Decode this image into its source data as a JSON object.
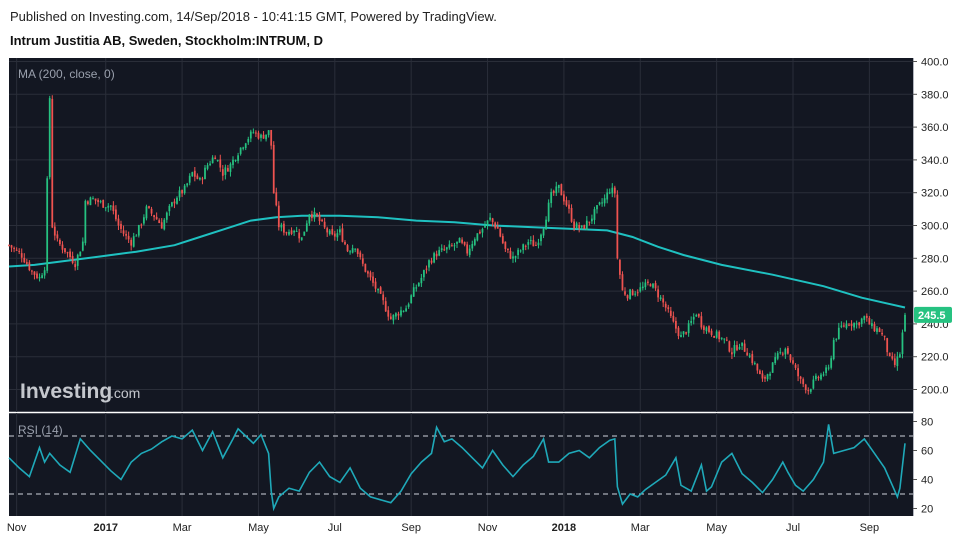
{
  "header": {
    "published": "Published on Investing.com, 14/Sep/2018 - 10:41:15 GMT, Powered by TradingView.",
    "instrument": "Intrum Justitia AB, Sweden, Stockholm:INTRUM, D"
  },
  "watermark": {
    "brand": "Investing",
    "suffix": ".com"
  },
  "colors": {
    "background": "#131722",
    "up": "#26c281",
    "down": "#ef5350",
    "ma": "#1fc1c1",
    "rsi": "#1fa9b9",
    "last_badge": "#26c281"
  },
  "chart_data": [
    {
      "type": "candlestick",
      "indicator_label": "MA (200, close, 0)",
      "ylim": [
        190,
        400
      ],
      "y_ticks": [
        "400.0",
        "380.0",
        "360.0",
        "340.0",
        "320.0",
        "300.0",
        "280.0",
        "260.0",
        "240.0",
        "220.0",
        "200.0"
      ],
      "last_price": "245.5",
      "x_ticks": [
        "Nov",
        "2017",
        "Mar",
        "May",
        "Jul",
        "Sep",
        "Nov",
        "2018",
        "Mar",
        "May",
        "Jul",
        "Sep"
      ],
      "close_path": [
        [
          0,
          288
        ],
        [
          5,
          282
        ],
        [
          9,
          272
        ],
        [
          12,
          268
        ],
        [
          14,
          275
        ],
        [
          16,
          378
        ],
        [
          17,
          300
        ],
        [
          19,
          290
        ],
        [
          22,
          285
        ],
        [
          26,
          277
        ],
        [
          29,
          290
        ],
        [
          30,
          315
        ],
        [
          33,
          316
        ],
        [
          37,
          313
        ],
        [
          40,
          312
        ],
        [
          43,
          300
        ],
        [
          46,
          293
        ],
        [
          48,
          290
        ],
        [
          51,
          298
        ],
        [
          54,
          310
        ],
        [
          57,
          306
        ],
        [
          60,
          300
        ],
        [
          63,
          310
        ],
        [
          66,
          318
        ],
        [
          69,
          322
        ],
        [
          72,
          332
        ],
        [
          75,
          327
        ],
        [
          78,
          337
        ],
        [
          81,
          343
        ],
        [
          84,
          332
        ],
        [
          87,
          337
        ],
        [
          90,
          345
        ],
        [
          93,
          352
        ],
        [
          96,
          357
        ],
        [
          99,
          354
        ],
        [
          102,
          357
        ],
        [
          103,
          349
        ],
        [
          104,
          320
        ],
        [
          106,
          300
        ],
        [
          109,
          296
        ],
        [
          112,
          298
        ],
        [
          115,
          292
        ],
        [
          118,
          308
        ],
        [
          121,
          305
        ],
        [
          124,
          298
        ],
        [
          127,
          293
        ],
        [
          130,
          296
        ],
        [
          133,
          285
        ],
        [
          136,
          288
        ],
        [
          138,
          279
        ],
        [
          141,
          270
        ],
        [
          144,
          262
        ],
        [
          147,
          253
        ],
        [
          150,
          243
        ],
        [
          153,
          247
        ],
        [
          156,
          250
        ],
        [
          159,
          260
        ],
        [
          162,
          268
        ],
        [
          165,
          278
        ],
        [
          168,
          283
        ],
        [
          171,
          285
        ],
        [
          174,
          287
        ],
        [
          177,
          290
        ],
        [
          180,
          284
        ],
        [
          183,
          293
        ],
        [
          186,
          298
        ],
        [
          189,
          304
        ],
        [
          192,
          298
        ],
        [
          195,
          285
        ],
        [
          198,
          280
        ],
        [
          201,
          285
        ],
        [
          204,
          290
        ],
        [
          207,
          288
        ],
        [
          210,
          300
        ],
        [
          213,
          318
        ],
        [
          216,
          323
        ],
        [
          219,
          313
        ],
        [
          222,
          300
        ],
        [
          225,
          298
        ],
        [
          228,
          303
        ],
        [
          231,
          310
        ],
        [
          234,
          316
        ],
        [
          236,
          322
        ],
        [
          238,
          320
        ],
        [
          239,
          280
        ],
        [
          241,
          260
        ],
        [
          243,
          258
        ],
        [
          246,
          260
        ],
        [
          249,
          262
        ],
        [
          252,
          265
        ],
        [
          255,
          258
        ],
        [
          258,
          250
        ],
        [
          261,
          240
        ],
        [
          264,
          232
        ],
        [
          267,
          238
        ],
        [
          270,
          247
        ],
        [
          272,
          240
        ],
        [
          275,
          236
        ],
        [
          278,
          233
        ],
        [
          281,
          230
        ],
        [
          284,
          223
        ],
        [
          287,
          228
        ],
        [
          290,
          223
        ],
        [
          293,
          215
        ],
        [
          296,
          205
        ],
        [
          299,
          212
        ],
        [
          302,
          220
        ],
        [
          305,
          226
        ],
        [
          308,
          215
        ],
        [
          311,
          205
        ],
        [
          314,
          200
        ],
        [
          317,
          206
        ],
        [
          320,
          210
        ],
        [
          322,
          212
        ],
        [
          324,
          230
        ],
        [
          327,
          238
        ],
        [
          330,
          241
        ],
        [
          333,
          240
        ],
        [
          336,
          244
        ],
        [
          339,
          238
        ],
        [
          342,
          236
        ],
        [
          344,
          230
        ],
        [
          346,
          218
        ],
        [
          348,
          215
        ],
        [
          350,
          222
        ],
        [
          352,
          245.5
        ]
      ],
      "ma_path": [
        [
          0,
          275
        ],
        [
          10,
          276
        ],
        [
          20,
          278
        ],
        [
          35,
          281
        ],
        [
          50,
          284
        ],
        [
          65,
          288
        ],
        [
          75,
          293
        ],
        [
          85,
          298
        ],
        [
          95,
          303
        ],
        [
          105,
          305
        ],
        [
          115,
          306
        ],
        [
          130,
          306
        ],
        [
          145,
          305
        ],
        [
          160,
          303
        ],
        [
          175,
          302
        ],
        [
          190,
          300
        ],
        [
          205,
          299
        ],
        [
          220,
          298
        ],
        [
          235,
          297
        ],
        [
          245,
          293
        ],
        [
          255,
          287
        ],
        [
          265,
          282
        ],
        [
          280,
          276
        ],
        [
          300,
          270
        ],
        [
          320,
          263
        ],
        [
          335,
          256
        ],
        [
          352,
          250
        ]
      ]
    },
    {
      "type": "line",
      "indicator_label": "RSI (14)",
      "ylim": [
        14,
        84
      ],
      "y_ticks": [
        "80",
        "60",
        "40",
        "20"
      ],
      "reference_lines": [
        70,
        30
      ],
      "values": [
        [
          0,
          55
        ],
        [
          4,
          48
        ],
        [
          8,
          42
        ],
        [
          12,
          62
        ],
        [
          14,
          52
        ],
        [
          16,
          58
        ],
        [
          20,
          50
        ],
        [
          24,
          45
        ],
        [
          28,
          68
        ],
        [
          32,
          60
        ],
        [
          36,
          53
        ],
        [
          40,
          46
        ],
        [
          44,
          40
        ],
        [
          48,
          52
        ],
        [
          52,
          58
        ],
        [
          56,
          61
        ],
        [
          60,
          66
        ],
        [
          64,
          70
        ],
        [
          68,
          68
        ],
        [
          72,
          74
        ],
        [
          76,
          60
        ],
        [
          80,
          73
        ],
        [
          84,
          55
        ],
        [
          88,
          68
        ],
        [
          90,
          75
        ],
        [
          93,
          70
        ],
        [
          96,
          65
        ],
        [
          99,
          71
        ],
        [
          102,
          58
        ],
        [
          103,
          32
        ],
        [
          104,
          20
        ],
        [
          106,
          28
        ],
        [
          110,
          34
        ],
        [
          114,
          32
        ],
        [
          118,
          45
        ],
        [
          122,
          52
        ],
        [
          126,
          42
        ],
        [
          130,
          38
        ],
        [
          134,
          48
        ],
        [
          138,
          34
        ],
        [
          142,
          28
        ],
        [
          146,
          26
        ],
        [
          150,
          24
        ],
        [
          154,
          32
        ],
        [
          158,
          44
        ],
        [
          162,
          52
        ],
        [
          166,
          58
        ],
        [
          168,
          76
        ],
        [
          171,
          66
        ],
        [
          174,
          68
        ],
        [
          178,
          62
        ],
        [
          182,
          55
        ],
        [
          186,
          48
        ],
        [
          190,
          60
        ],
        [
          194,
          50
        ],
        [
          198,
          42
        ],
        [
          202,
          50
        ],
        [
          206,
          56
        ],
        [
          210,
          68
        ],
        [
          212,
          52
        ],
        [
          216,
          52
        ],
        [
          220,
          58
        ],
        [
          224,
          60
        ],
        [
          228,
          55
        ],
        [
          232,
          62
        ],
        [
          236,
          67
        ],
        [
          238,
          68
        ],
        [
          239,
          35
        ],
        [
          241,
          23
        ],
        [
          244,
          30
        ],
        [
          247,
          28
        ],
        [
          250,
          33
        ],
        [
          254,
          38
        ],
        [
          258,
          43
        ],
        [
          262,
          55
        ],
        [
          264,
          36
        ],
        [
          268,
          32
        ],
        [
          272,
          50
        ],
        [
          274,
          32
        ],
        [
          276,
          35
        ],
        [
          280,
          52
        ],
        [
          284,
          58
        ],
        [
          288,
          44
        ],
        [
          292,
          38
        ],
        [
          296,
          31
        ],
        [
          300,
          40
        ],
        [
          304,
          52
        ],
        [
          306,
          45
        ],
        [
          309,
          36
        ],
        [
          312,
          32
        ],
        [
          316,
          40
        ],
        [
          320,
          52
        ],
        [
          322,
          78
        ],
        [
          324,
          58
        ],
        [
          328,
          60
        ],
        [
          332,
          62
        ],
        [
          336,
          68
        ],
        [
          340,
          58
        ],
        [
          344,
          48
        ],
        [
          347,
          36
        ],
        [
          349,
          28
        ],
        [
          350,
          34
        ],
        [
          352,
          65
        ]
      ]
    }
  ]
}
